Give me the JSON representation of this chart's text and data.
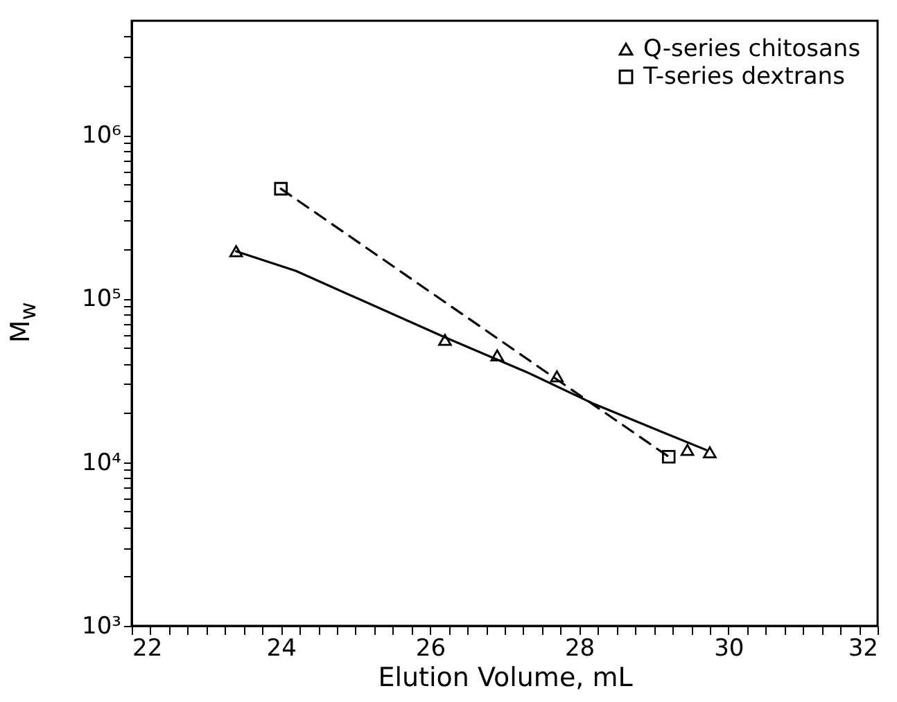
{
  "chart_data": {
    "type": "scatter",
    "xlabel": "Elution Volume, mL",
    "ylabel": "M$_{w}$",
    "log": "y",
    "grid": false,
    "legend": "top right",
    "xlim": [
      22,
      32
    ],
    "ylim": [
      1000,
      5000000
    ],
    "xticks": [
      22,
      {
        "value": 22.25,
        "label": null
      },
      {
        "value": 22.5,
        "label": null
      },
      {
        "value": 22.75,
        "label": null
      },
      {
        "value": 23,
        "label": null
      },
      {
        "value": 23.25,
        "label": null
      },
      {
        "value": 23.5,
        "label": null
      },
      {
        "value": 23.75,
        "label": null
      },
      24,
      {
        "value": 24.25,
        "label": null
      },
      {
        "value": 24.5,
        "label": null
      },
      {
        "value": 24.75,
        "label": null
      },
      {
        "value": 25,
        "label": null
      },
      {
        "value": 25.25,
        "label": null
      },
      {
        "value": 25.5,
        "label": null
      },
      {
        "value": 25.75,
        "label": null
      },
      26,
      {
        "value": 26.25,
        "label": null
      },
      {
        "value": 26.5,
        "label": null
      },
      {
        "value": 26.75,
        "label": null
      },
      {
        "value": 27,
        "label": null
      },
      {
        "value": 27.25,
        "label": null
      },
      {
        "value": 27.5,
        "label": null
      },
      {
        "value": 27.75,
        "label": null
      },
      28,
      {
        "value": 28.25,
        "label": null
      },
      {
        "value": 28.5,
        "label": null
      },
      {
        "value": 28.75,
        "label": null
      },
      {
        "value": 29,
        "label": null
      },
      {
        "value": 29.25,
        "label": null
      },
      {
        "value": 29.5,
        "label": null
      },
      {
        "value": 29.75,
        "label": null
      },
      30,
      {
        "value": 30.25,
        "label": null
      },
      {
        "value": 30.5,
        "label": null
      },
      {
        "value": 30.75,
        "label": null
      },
      {
        "value": 31,
        "label": null
      },
      {
        "value": 31.25,
        "label": null
      },
      {
        "value": 31.5,
        "label": null
      },
      {
        "value": 31.75,
        "label": null
      },
      32
    ],
    "yticks": [
      {
        "value": 1000,
        "label": "10³"
      },
      {
        "value": 2000,
        "label": null
      },
      {
        "value": 3000,
        "label": null
      },
      {
        "value": 4000,
        "label": null
      },
      {
        "value": 5000,
        "label": null
      },
      {
        "value": 6000,
        "label": null
      },
      {
        "value": 7000,
        "label": null
      },
      {
        "value": 8000,
        "label": null
      },
      {
        "value": 9000,
        "label": null
      },
      {
        "value": 10000,
        "label": "10⁴"
      },
      {
        "value": 20000,
        "label": null
      },
      {
        "value": 30000,
        "label": null
      },
      {
        "value": 40000,
        "label": null
      },
      {
        "value": 50000,
        "label": null
      },
      {
        "value": 60000,
        "label": null
      },
      {
        "value": 70000,
        "label": null
      },
      {
        "value": 80000,
        "label": null
      },
      {
        "value": 90000,
        "label": null
      },
      {
        "value": 100000,
        "label": "10⁵"
      },
      {
        "value": 200000,
        "label": null
      },
      {
        "value": 300000,
        "label": null
      },
      {
        "value": 400000,
        "label": null
      },
      {
        "value": 500000,
        "label": null
      },
      {
        "value": 600000,
        "label": null
      },
      {
        "value": 700000,
        "label": null
      },
      {
        "value": 800000,
        "label": null
      },
      {
        "value": 900000,
        "label": null
      },
      {
        "value": 1000000,
        "label": "10⁶"
      },
      {
        "value": 2000000,
        "label": null
      },
      {
        "value": 3000000,
        "label": null
      },
      {
        "value": 4000000,
        "label": null
      }
    ],
    "series": [
      {
        "type": "line",
        "line_style": "solid",
        "color": "#000000",
        "x": [
          23.4,
          24.2,
          26.2,
          27.3,
          28.2,
          29.1,
          29.7
        ],
        "values": [
          195000,
          148000,
          58000,
          35500,
          22700,
          15400,
          11900
        ]
      },
      {
        "type": "line",
        "line_style": "dashed",
        "color": "#000000",
        "x": [
          24.0,
          29.2
        ],
        "values": [
          470000,
          10800
        ]
      },
      {
        "name": "Q-series chitosans",
        "marker": "triangle",
        "color": "#000000",
        "x": [
          23.4,
          26.2,
          26.9,
          27.7,
          29.45,
          29.75
        ],
        "values": [
          195000,
          56000,
          45000,
          33500,
          11900,
          11500
        ]
      },
      {
        "name": "T-series dextrans",
        "marker": "square",
        "color": "#000000",
        "x": [
          24.0,
          29.2
        ],
        "values": [
          470000,
          10800
        ]
      }
    ]
  }
}
